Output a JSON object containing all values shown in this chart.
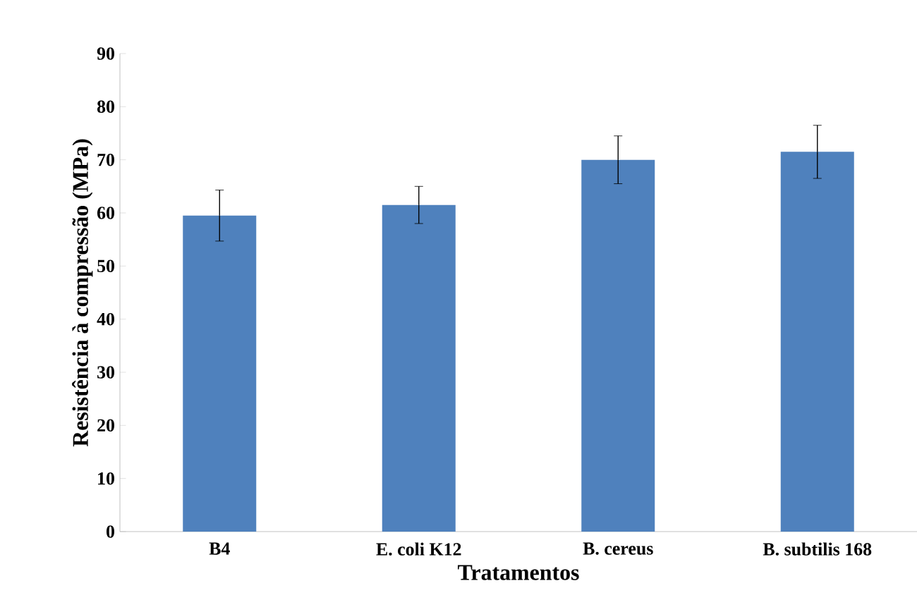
{
  "chart_data": {
    "type": "bar",
    "xlabel": "Tratamentos",
    "ylabel": "Resistência à compressão (MPa)",
    "categories": [
      "B4",
      "E. coli K12",
      "B. cereus",
      "B. subtilis 168"
    ],
    "values": [
      59.5,
      61.5,
      70,
      71.5
    ],
    "errors": [
      4.8,
      3.5,
      4.5,
      5
    ],
    "color": "#4f81bd",
    "ylim": [
      0,
      90
    ],
    "yticks": [
      0,
      10,
      20,
      30,
      40,
      50,
      60,
      70,
      80,
      90
    ],
    "grid": false,
    "legend": false
  }
}
